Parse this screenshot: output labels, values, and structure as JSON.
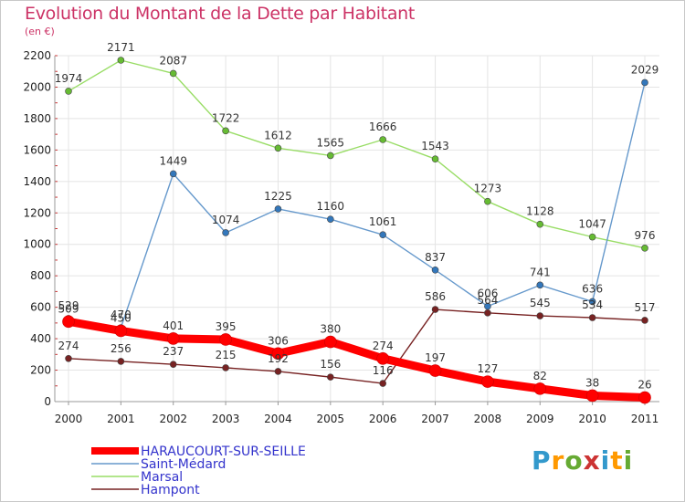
{
  "title": "Evolution du Montant de la Dette par Habitant",
  "unit": "(en €)",
  "chart_data": {
    "type": "line",
    "x": [
      "2000",
      "2001",
      "2002",
      "2003",
      "2004",
      "2005",
      "2006",
      "2007",
      "2008",
      "2009",
      "2010",
      "2011"
    ],
    "ylim": [
      0,
      2200
    ],
    "yticks": [
      0,
      200,
      400,
      600,
      800,
      1000,
      1200,
      1400,
      1600,
      1800,
      2000,
      2200
    ],
    "grid": true,
    "legend_position": "bottom-left",
    "series": [
      {
        "name": "HARAUCOURT-SUR-SEILLE",
        "color": "#ff0000",
        "marker": "#ff0000",
        "values": [
          509,
          450,
          401,
          395,
          306,
          380,
          274,
          197,
          127,
          82,
          38,
          26
        ]
      },
      {
        "name": "Saint-Médard",
        "color": "#6699cc",
        "marker": "#3377bb",
        "values": [
          529,
          470,
          1449,
          1074,
          1225,
          1160,
          1061,
          837,
          606,
          741,
          636,
          2029
        ]
      },
      {
        "name": "Marsal",
        "color": "#99dd66",
        "marker": "#66bb33",
        "values": [
          1974,
          2171,
          2087,
          1722,
          1612,
          1565,
          1666,
          1543,
          1273,
          1128,
          1047,
          976
        ]
      },
      {
        "name": "Hampont",
        "color": "#772222",
        "marker": "#772222",
        "values": [
          274,
          256,
          237,
          215,
          192,
          156,
          116,
          586,
          564,
          545,
          534,
          517
        ]
      }
    ]
  },
  "logo": {
    "letters": [
      "P",
      "r",
      "o",
      "x",
      "i",
      "t",
      "i"
    ],
    "colors": [
      "#3399cc",
      "#ff9900",
      "#66aa33",
      "#cc3333",
      "#3399cc",
      "#ff9900",
      "#66aa33"
    ]
  }
}
